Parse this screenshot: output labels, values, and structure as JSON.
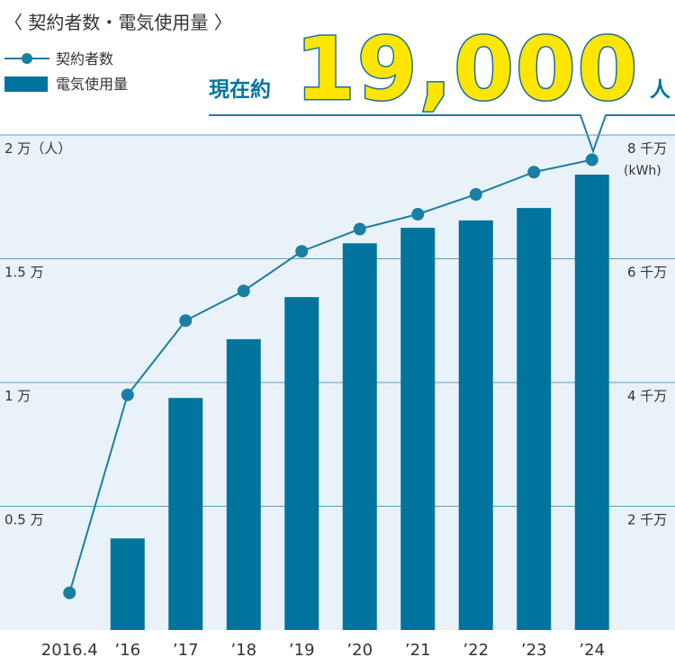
{
  "chart_data": {
    "type": "bar",
    "title": "〈 契約者数・電気使用量 〉",
    "annotation": {
      "prefix": "現在約",
      "number": "19,000",
      "unit": "人"
    },
    "y2_label": "(kWh)",
    "categories": [
      "2016.4",
      "’16",
      "’17",
      "’18",
      "’19",
      "’20",
      "’21",
      "’22",
      "’23",
      "’24"
    ],
    "series": [
      {
        "name": "契約者数",
        "type": "line",
        "color": "#1a7fa3",
        "values": [
          1500,
          9500,
          12500,
          13700,
          15300,
          16200,
          16800,
          17600,
          18500,
          19000
        ]
      },
      {
        "name": "電気使用量",
        "type": "bar",
        "axis": "y2",
        "color": "#00749c",
        "values": [
          null,
          14800000,
          37500000,
          47000000,
          53800000,
          62500000,
          65000000,
          66200000,
          68200000,
          73600000
        ]
      }
    ],
    "ylim": [
      0,
      20000
    ],
    "yticks": [
      {
        "value": 5000,
        "label": "0.5 万"
      },
      {
        "value": 10000,
        "label": "1 万"
      },
      {
        "value": 15000,
        "label": "1.5 万"
      },
      {
        "value": 20000,
        "label": "2 万（人）"
      }
    ],
    "y2lim": [
      0,
      80000000
    ],
    "y2ticks": [
      {
        "value": 20000000,
        "label": "2 千万"
      },
      {
        "value": 40000000,
        "label": "4 千万"
      },
      {
        "value": 60000000,
        "label": "6 千万"
      },
      {
        "value": 80000000,
        "label": "8 千万"
      }
    ],
    "grid": true
  }
}
